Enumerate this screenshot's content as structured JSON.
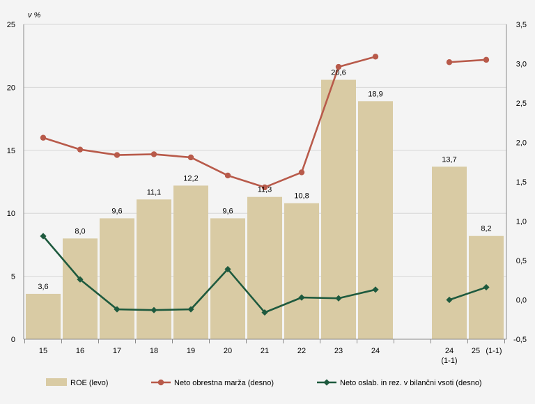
{
  "chart_data": {
    "type": "bar",
    "y_unit_label": "v %",
    "categories": [
      "15",
      "16",
      "17",
      "18",
      "19",
      "20",
      "21",
      "22",
      "23",
      "24",
      "24\n(1-1)",
      "25 (1-1)"
    ],
    "category_labels": [
      [
        "15"
      ],
      [
        "16"
      ],
      [
        "17"
      ],
      [
        "18"
      ],
      [
        "19"
      ],
      [
        "20"
      ],
      [
        "21"
      ],
      [
        "22"
      ],
      [
        "23"
      ],
      [
        "24"
      ],
      [
        "24",
        "(1-1)"
      ],
      [
        "25",
        "(1-1)"
      ]
    ],
    "gap_after_index": 9,
    "left_axis": {
      "min": 0,
      "max": 25,
      "ticks": [
        "0",
        "5",
        "10",
        "15",
        "20",
        "25"
      ]
    },
    "right_axis": {
      "min": -0.5,
      "max": 3.5,
      "ticks": [
        "-0,5",
        "0,0",
        "0,5",
        "1,0",
        "1,5",
        "2,0",
        "2,5",
        "3,0",
        "3,5"
      ]
    },
    "series": [
      {
        "name": "ROE (levo)",
        "type": "bar",
        "axis": "left",
        "color": "#d9cba4",
        "values": [
          3.6,
          8.0,
          9.6,
          11.1,
          12.2,
          9.6,
          11.3,
          10.8,
          20.6,
          18.9,
          13.7,
          8.2
        ],
        "labels": [
          "3,6",
          "8,0",
          "9,6",
          "11,1",
          "12,2",
          "9,6",
          "11,3",
          "10,8",
          "20,6",
          "18,9",
          "13,7",
          "8,2"
        ]
      },
      {
        "name": "Neto obrestna marža (desno)",
        "type": "line",
        "axis": "right",
        "color": "#b85a4a",
        "marker": "circle",
        "values": [
          2.06,
          1.91,
          1.84,
          1.85,
          1.81,
          1.58,
          1.43,
          1.62,
          2.96,
          3.09,
          3.02,
          3.05
        ],
        "segments": [
          [
            0,
            9
          ],
          [
            10,
            11
          ]
        ]
      },
      {
        "name": "Neto oslab. in rez. v bilančni vsoti (desno)",
        "type": "line",
        "axis": "right",
        "color": "#1e5a3e",
        "marker": "diamond",
        "values": [
          0.81,
          0.26,
          -0.12,
          -0.13,
          -0.12,
          0.39,
          -0.16,
          0.03,
          0.02,
          0.13,
          0.0,
          0.16
        ],
        "segments": [
          [
            0,
            9
          ],
          [
            10,
            11
          ]
        ]
      }
    ],
    "grid": "horizontal",
    "legend": "bottom"
  }
}
